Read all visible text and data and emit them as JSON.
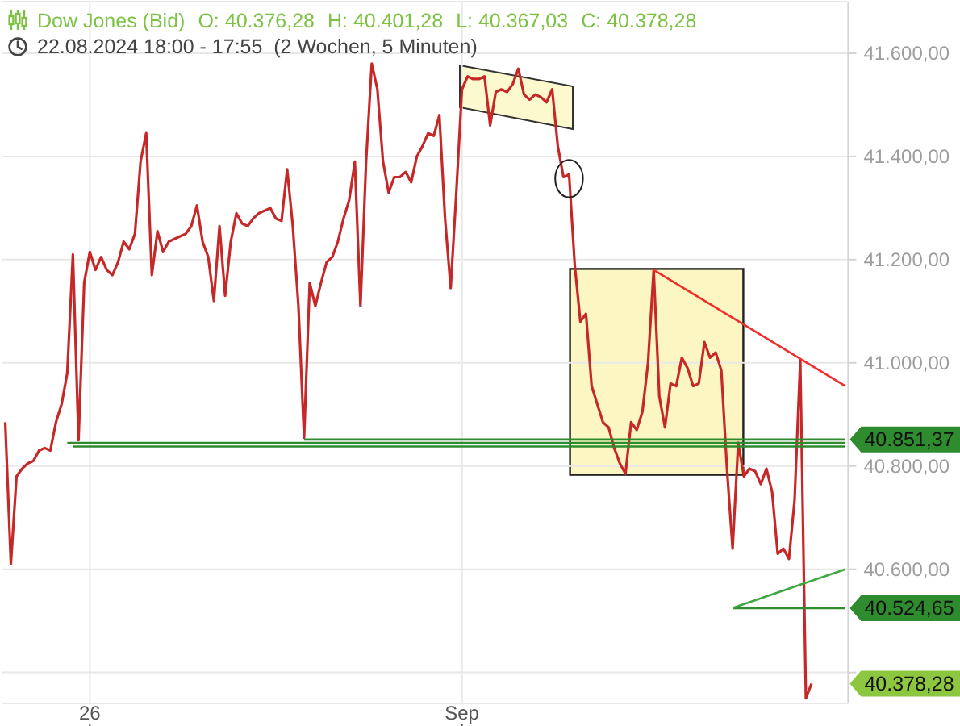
{
  "chart_data": {
    "type": "line",
    "title": "Dow Jones (Bid)",
    "subtitle": "22.08.2024 18:00 - 17:55  (2 Wochen, 5 Minuten)",
    "annotations": [
      "O: 40.376,28",
      "H: 40.401,28",
      "L: 40.367,03",
      "C: 40.378,28",
      "40.378,28"
    ],
    "categories": [
      null,
      null,
      null,
      null,
      null,
      null,
      null,
      null,
      null,
      null,
      null,
      null,
      null,
      null,
      null,
      "26",
      null,
      null,
      null,
      null,
      null,
      null,
      null,
      null,
      null,
      null,
      null,
      null,
      null,
      null,
      null,
      null,
      null,
      null,
      null,
      null,
      null,
      null,
      null,
      null,
      null,
      null,
      null,
      null,
      null,
      null,
      null,
      null,
      null,
      null,
      null,
      null,
      null,
      null,
      null,
      null,
      null,
      null,
      null,
      null,
      null,
      null,
      null,
      null,
      null,
      null,
      null,
      null,
      null,
      null,
      null,
      null,
      null,
      null,
      null,
      null,
      null,
      null,
      null,
      null,
      null,
      "Sep",
      null,
      null,
      null,
      null,
      null,
      null,
      null,
      null,
      null,
      null,
      null,
      null,
      null,
      null,
      null,
      null,
      null,
      null,
      null,
      null,
      null,
      null,
      null,
      null,
      null,
      null,
      null,
      null,
      null,
      null,
      null,
      null,
      null,
      null,
      null,
      null,
      null,
      null,
      null,
      null,
      null,
      null,
      null,
      null,
      null,
      null,
      null,
      null,
      null,
      null,
      null,
      null,
      null,
      null,
      null,
      null,
      null,
      null,
      null,
      null,
      null,
      null,
      null,
      null,
      null,
      null,
      null,
      null
    ],
    "series": [
      {
        "color": "#c62828",
        "values": [
          40885,
          40610,
          40780,
          40795,
          40805,
          40810,
          40830,
          40835,
          40830,
          40885,
          40920,
          40980,
          41210,
          40850,
          41155,
          41215,
          41180,
          41205,
          41180,
          41170,
          41195,
          41235,
          41220,
          41250,
          41390,
          41445,
          41170,
          41255,
          41215,
          41235,
          41240,
          41245,
          41250,
          41265,
          41305,
          41235,
          41205,
          41120,
          41265,
          41130,
          41235,
          41290,
          41270,
          41265,
          41280,
          41290,
          41295,
          41300,
          41280,
          41275,
          41375,
          41265,
          41110,
          40855,
          41155,
          41110,
          41155,
          41195,
          41205,
          41235,
          41280,
          41315,
          41390,
          41110,
          41390,
          41580,
          41530,
          41390,
          41330,
          41360,
          41360,
          41370,
          41350,
          41400,
          41420,
          41445,
          41440,
          41480,
          41280,
          41145,
          41330,
          41530,
          41555,
          41550,
          41550,
          41555,
          41460,
          41525,
          41530,
          41525,
          41540,
          41570,
          41520,
          41510,
          41520,
          41515,
          41505,
          41530,
          41420,
          41360,
          41365,
          41190,
          41080,
          41095,
          40955,
          40920,
          40885,
          40875,
          40835,
          40805,
          40785,
          40885,
          40870,
          40905,
          41000,
          41180,
          40935,
          40875,
          40960,
          40955,
          41010,
          40990,
          40955,
          40960,
          41040,
          41010,
          41020,
          40985,
          40795,
          40640,
          40845,
          40780,
          40795,
          40790,
          40765,
          40795,
          40750,
          40630,
          40640,
          40620,
          40735,
          41005,
          40350,
          40378.28,
          null,
          null,
          null,
          null,
          null,
          null
        ]
      },
      {
        "color": "#2e8b2e",
        "values": [
          null,
          null,
          null,
          null,
          null,
          null,
          null,
          null,
          null,
          null,
          null,
          null,
          null,
          null,
          null,
          null,
          null,
          null,
          null,
          null,
          null,
          null,
          null,
          null,
          null,
          null,
          null,
          null,
          null,
          null,
          null,
          null,
          null,
          null,
          null,
          null,
          null,
          null,
          null,
          null,
          null,
          null,
          null,
          null,
          null,
          null,
          null,
          null,
          null,
          null,
          null,
          null,
          null,
          40851.37,
          null,
          null,
          null,
          null,
          null,
          null,
          null,
          null,
          null,
          null,
          null,
          null,
          null,
          null,
          null,
          null,
          null,
          null,
          null,
          null,
          null,
          null,
          null,
          null,
          null,
          null,
          null,
          null,
          null,
          null,
          null,
          null,
          null,
          null,
          null,
          null,
          null,
          null,
          null,
          null,
          null,
          null,
          null,
          null,
          null,
          null,
          null,
          null,
          null,
          null,
          null,
          null,
          null,
          null,
          null,
          null,
          null,
          null,
          null,
          null,
          null,
          null,
          null,
          null,
          null,
          null,
          null,
          null,
          null,
          null,
          null,
          null,
          null,
          null,
          null,
          null,
          null,
          null,
          null,
          null,
          null,
          null,
          null,
          null,
          null,
          null,
          null,
          null,
          null,
          null,
          null,
          null,
          null,
          null,
          null,
          40851.37
        ],
        "value_labels": [
          null,
          null,
          null,
          null,
          null,
          null,
          null,
          null,
          null,
          null,
          null,
          null,
          null,
          null,
          null,
          null,
          null,
          null,
          null,
          null,
          null,
          null,
          null,
          null,
          null,
          null,
          null,
          null,
          null,
          null,
          null,
          null,
          null,
          null,
          null,
          null,
          null,
          null,
          null,
          null,
          null,
          null,
          null,
          null,
          null,
          null,
          null,
          null,
          null,
          null,
          null,
          null,
          null,
          null,
          null,
          null,
          null,
          null,
          null,
          null,
          null,
          null,
          null,
          null,
          null,
          null,
          null,
          null,
          null,
          null,
          null,
          null,
          null,
          null,
          null,
          null,
          null,
          null,
          null,
          null,
          null,
          null,
          null,
          null,
          null,
          null,
          null,
          null,
          null,
          null,
          null,
          null,
          null,
          null,
          null,
          null,
          null,
          null,
          null,
          null,
          null,
          null,
          null,
          null,
          null,
          null,
          null,
          null,
          null,
          null,
          null,
          null,
          null,
          null,
          null,
          null,
          null,
          null,
          null,
          null,
          null,
          null,
          null,
          null,
          null,
          null,
          null,
          null,
          null,
          null,
          null,
          null,
          null,
          null,
          null,
          null,
          null,
          null,
          null,
          null,
          null,
          null,
          null,
          null,
          null,
          null,
          null,
          null,
          null,
          "40.851,37"
        ]
      },
      {
        "color": "#2e8b2e",
        "values": [
          null,
          null,
          null,
          null,
          null,
          null,
          null,
          null,
          null,
          null,
          null,
          40845,
          null,
          null,
          null,
          null,
          null,
          null,
          null,
          null,
          null,
          null,
          null,
          null,
          null,
          null,
          null,
          null,
          null,
          null,
          null,
          null,
          null,
          null,
          null,
          null,
          null,
          null,
          null,
          null,
          null,
          null,
          null,
          null,
          null,
          null,
          null,
          null,
          null,
          null,
          null,
          null,
          null,
          null,
          null,
          null,
          null,
          null,
          null,
          null,
          null,
          null,
          null,
          null,
          null,
          null,
          null,
          null,
          null,
          null,
          null,
          null,
          null,
          null,
          null,
          null,
          null,
          null,
          null,
          null,
          null,
          null,
          null,
          null,
          null,
          null,
          null,
          null,
          null,
          null,
          null,
          null,
          null,
          null,
          null,
          null,
          null,
          null,
          null,
          null,
          null,
          null,
          null,
          null,
          null,
          null,
          null,
          null,
          null,
          null,
          null,
          null,
          null,
          null,
          null,
          null,
          null,
          null,
          null,
          null,
          null,
          null,
          null,
          null,
          null,
          null,
          null,
          null,
          null,
          null,
          null,
          null,
          null,
          null,
          null,
          null,
          null,
          null,
          null,
          null,
          null,
          null,
          null,
          null,
          null,
          null,
          null,
          null,
          null,
          40845
        ]
      },
      {
        "color": "#2e8b2e",
        "values": [
          null,
          null,
          null,
          null,
          null,
          null,
          null,
          null,
          null,
          null,
          null,
          null,
          40838,
          null,
          null,
          null,
          null,
          null,
          null,
          null,
          null,
          null,
          null,
          null,
          null,
          null,
          null,
          null,
          null,
          null,
          null,
          null,
          null,
          null,
          null,
          null,
          null,
          null,
          null,
          null,
          null,
          null,
          null,
          null,
          null,
          null,
          null,
          null,
          null,
          null,
          null,
          null,
          null,
          null,
          null,
          null,
          null,
          null,
          null,
          null,
          null,
          null,
          null,
          null,
          null,
          null,
          null,
          null,
          null,
          null,
          null,
          null,
          null,
          null,
          null,
          null,
          null,
          null,
          null,
          null,
          null,
          null,
          null,
          null,
          null,
          null,
          null,
          null,
          null,
          null,
          null,
          null,
          null,
          null,
          null,
          null,
          null,
          null,
          null,
          null,
          null,
          null,
          null,
          null,
          null,
          null,
          null,
          null,
          null,
          null,
          null,
          null,
          null,
          null,
          null,
          null,
          null,
          null,
          null,
          null,
          null,
          null,
          null,
          null,
          null,
          null,
          null,
          null,
          null,
          null,
          null,
          null,
          null,
          null,
          null,
          null,
          null,
          null,
          null,
          null,
          null,
          null,
          null,
          null,
          null,
          null,
          null,
          null,
          null,
          40838
        ]
      },
      {
        "color": "#2e8b2e",
        "values": [
          null,
          null,
          null,
          null,
          null,
          null,
          null,
          null,
          null,
          null,
          null,
          null,
          null,
          null,
          null,
          null,
          null,
          null,
          null,
          null,
          null,
          null,
          null,
          null,
          null,
          null,
          null,
          null,
          null,
          null,
          null,
          null,
          null,
          null,
          null,
          null,
          null,
          null,
          null,
          null,
          null,
          null,
          null,
          null,
          null,
          null,
          null,
          null,
          null,
          null,
          null,
          null,
          null,
          null,
          null,
          null,
          null,
          null,
          null,
          null,
          null,
          null,
          null,
          null,
          null,
          null,
          null,
          null,
          null,
          null,
          null,
          null,
          null,
          null,
          null,
          null,
          null,
          null,
          null,
          null,
          null,
          null,
          null,
          null,
          null,
          null,
          null,
          null,
          null,
          null,
          null,
          null,
          null,
          null,
          null,
          null,
          null,
          null,
          null,
          null,
          null,
          null,
          null,
          null,
          null,
          null,
          null,
          null,
          null,
          null,
          null,
          null,
          null,
          null,
          null,
          null,
          null,
          null,
          null,
          null,
          null,
          null,
          null,
          null,
          null,
          null,
          null,
          null,
          null,
          40524.65,
          null,
          null,
          null,
          null,
          null,
          null,
          null,
          null,
          null,
          null,
          null,
          null,
          null,
          null,
          null,
          null,
          null,
          null,
          null,
          40524.65
        ],
        "value_labels": [
          null,
          null,
          null,
          null,
          null,
          null,
          null,
          null,
          null,
          null,
          null,
          null,
          null,
          null,
          null,
          null,
          null,
          null,
          null,
          null,
          null,
          null,
          null,
          null,
          null,
          null,
          null,
          null,
          null,
          null,
          null,
          null,
          null,
          null,
          null,
          null,
          null,
          null,
          null,
          null,
          null,
          null,
          null,
          null,
          null,
          null,
          null,
          null,
          null,
          null,
          null,
          null,
          null,
          null,
          null,
          null,
          null,
          null,
          null,
          null,
          null,
          null,
          null,
          null,
          null,
          null,
          null,
          null,
          null,
          null,
          null,
          null,
          null,
          null,
          null,
          null,
          null,
          null,
          null,
          null,
          null,
          null,
          null,
          null,
          null,
          null,
          null,
          null,
          null,
          null,
          null,
          null,
          null,
          null,
          null,
          null,
          null,
          null,
          null,
          null,
          null,
          null,
          null,
          null,
          null,
          null,
          null,
          null,
          null,
          null,
          null,
          null,
          null,
          null,
          null,
          null,
          null,
          null,
          null,
          null,
          null,
          null,
          null,
          null,
          null,
          null,
          null,
          null,
          null,
          null,
          null,
          null,
          null,
          null,
          null,
          null,
          null,
          null,
          null,
          null,
          null,
          null,
          null,
          null,
          null,
          null,
          null,
          null,
          null,
          "40.524,65"
        ]
      },
      {
        "color": "#f22b2b",
        "values": [
          null,
          null,
          null,
          null,
          null,
          null,
          null,
          null,
          null,
          null,
          null,
          null,
          null,
          null,
          null,
          null,
          null,
          null,
          null,
          null,
          null,
          null,
          null,
          null,
          null,
          null,
          null,
          null,
          null,
          null,
          null,
          null,
          null,
          null,
          null,
          null,
          null,
          null,
          null,
          null,
          null,
          null,
          null,
          null,
          null,
          null,
          null,
          null,
          null,
          null,
          null,
          null,
          null,
          null,
          null,
          null,
          null,
          null,
          null,
          null,
          null,
          null,
          null,
          null,
          null,
          null,
          null,
          null,
          null,
          null,
          null,
          null,
          null,
          null,
          null,
          null,
          null,
          null,
          null,
          null,
          null,
          null,
          null,
          null,
          null,
          null,
          null,
          null,
          null,
          null,
          null,
          null,
          null,
          null,
          null,
          null,
          null,
          null,
          null,
          null,
          null,
          null,
          null,
          null,
          null,
          null,
          null,
          null,
          null,
          null,
          null,
          null,
          null,
          null,
          null,
          41180,
          null,
          null,
          null,
          null,
          null,
          null,
          null,
          null,
          null,
          null,
          null,
          null,
          null,
          null,
          null,
          null,
          null,
          null,
          null,
          null,
          null,
          null,
          null,
          null,
          null,
          null,
          null,
          null,
          null,
          null,
          null,
          null,
          null,
          40955
        ]
      },
      {
        "color": "#3da63d",
        "values": [
          null,
          null,
          null,
          null,
          null,
          null,
          null,
          null,
          null,
          null,
          null,
          null,
          null,
          null,
          null,
          null,
          null,
          null,
          null,
          null,
          null,
          null,
          null,
          null,
          null,
          null,
          null,
          null,
          null,
          null,
          null,
          null,
          null,
          null,
          null,
          null,
          null,
          null,
          null,
          null,
          null,
          null,
          null,
          null,
          null,
          null,
          null,
          null,
          null,
          null,
          null,
          null,
          null,
          null,
          null,
          null,
          null,
          null,
          null,
          null,
          null,
          null,
          null,
          null,
          null,
          null,
          null,
          null,
          null,
          null,
          null,
          null,
          null,
          null,
          null,
          null,
          null,
          null,
          null,
          null,
          null,
          null,
          null,
          null,
          null,
          null,
          null,
          null,
          null,
          null,
          null,
          null,
          null,
          null,
          null,
          null,
          null,
          null,
          null,
          null,
          null,
          null,
          null,
          null,
          null,
          null,
          null,
          null,
          null,
          null,
          null,
          null,
          null,
          null,
          null,
          null,
          null,
          null,
          null,
          null,
          null,
          null,
          null,
          null,
          null,
          null,
          null,
          null,
          null,
          40525,
          null,
          null,
          null,
          null,
          null,
          null,
          null,
          null,
          null,
          null,
          null,
          null,
          null,
          null,
          null,
          null,
          null,
          null,
          null,
          40600
        ]
      }
    ],
    "ylim": [
      40340,
      41700
    ],
    "yticks": [
      {
        "value": 40400,
        "label": null
      },
      {
        "value": 40600,
        "label": "40.600,00"
      },
      {
        "value": 40800,
        "label": "40.800,00"
      },
      {
        "value": 41000,
        "label": "41.000,00"
      },
      {
        "value": 41200,
        "label": "41.200,00"
      },
      {
        "value": 41400,
        "label": "41.400,00"
      },
      {
        "value": 41600,
        "label": "41.600,00"
      }
    ],
    "grid": true
  }
}
